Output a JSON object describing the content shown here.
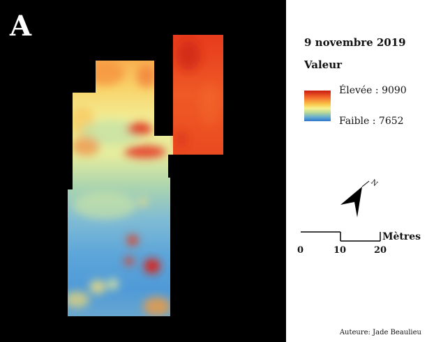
{
  "panel_letter": "A",
  "legend": {
    "date": "9 novembre 2019",
    "title": "Valeur",
    "high_label": "Élevée : 9090",
    "low_label": "Faible : 7652",
    "high_value": 9090,
    "low_value": 7652,
    "ramp_colors": [
      "#c81b10",
      "#f36a2a",
      "#f8c84a",
      "#f7f18e",
      "#b8d99a",
      "#5fa8d3",
      "#2e77c9"
    ]
  },
  "north_arrow": {
    "label": "N"
  },
  "scale": {
    "ticks": [
      "0",
      "10",
      "20"
    ],
    "unit": "Mètres"
  },
  "credit": "Auteure: Jade Beaulieu",
  "colors": {
    "background": "#000000",
    "high": "#c81b10",
    "low": "#2e77c9"
  }
}
